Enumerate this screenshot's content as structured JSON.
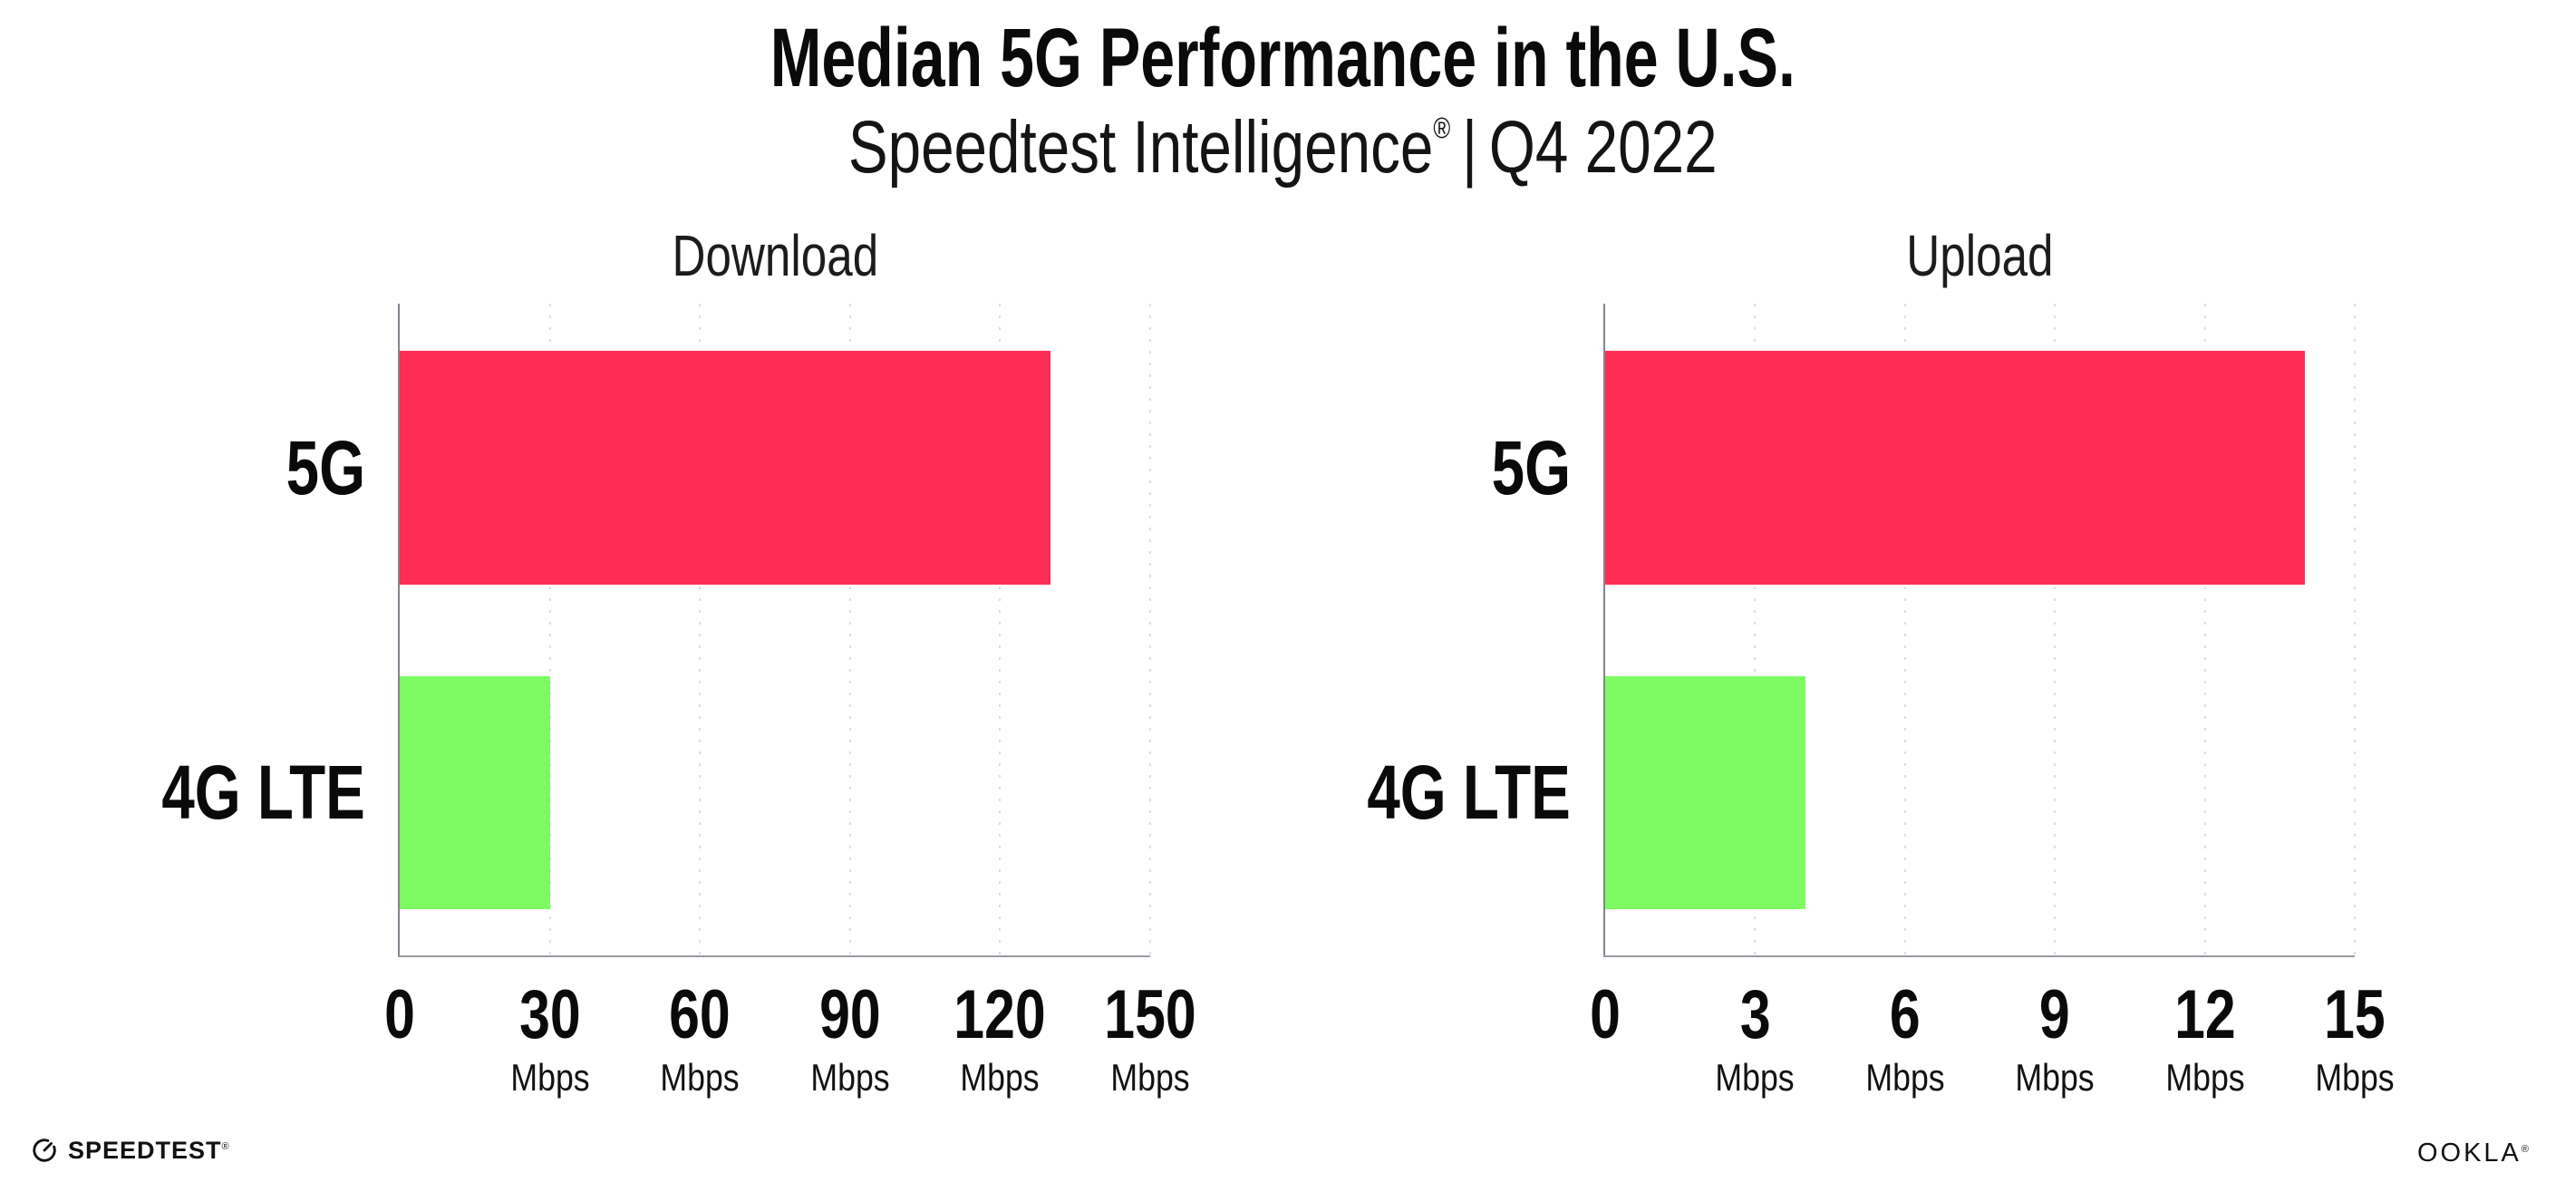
{
  "header": {
    "title": "Median 5G Performance in the U.S.",
    "subtitle_brand": "Speedtest Intelligence",
    "subtitle_reg": "®",
    "subtitle_divider": "|",
    "subtitle_period": "Q4 2022"
  },
  "chart_data": [
    {
      "type": "bar",
      "orientation": "horizontal",
      "title": "Download",
      "categories": [
        "5G",
        "4G LTE"
      ],
      "values": [
        130,
        30
      ],
      "unit": "Mbps",
      "xlim": [
        0,
        150
      ],
      "xticks": [
        0,
        30,
        60,
        90,
        120,
        150
      ],
      "tick_unit_label": "Mbps",
      "bar_colors": [
        "#FF2D55",
        "#7CFC62"
      ],
      "grid": "dotted-vertical",
      "legend": "none"
    },
    {
      "type": "bar",
      "orientation": "horizontal",
      "title": "Upload",
      "categories": [
        "5G",
        "4G LTE"
      ],
      "values": [
        14,
        4
      ],
      "unit": "Mbps",
      "xlim": [
        0,
        15
      ],
      "xticks": [
        0,
        3,
        6,
        9,
        12,
        15
      ],
      "tick_unit_label": "Mbps",
      "bar_colors": [
        "#FF2D55",
        "#7CFC62"
      ],
      "grid": "dotted-vertical",
      "legend": "none"
    }
  ],
  "footer": {
    "speedtest_logo_text": "SPEEDTEST",
    "speedtest_mark": "®",
    "ookla_logo_text": "OOKLA",
    "ookla_mark": "®"
  },
  "colors": {
    "bar_5g": "#FF2D55",
    "bar_4g_lte": "#7CFC62",
    "axis": "#9a9aa2",
    "grid_dot": "#dcdce8",
    "text": "#0a0a0a",
    "background": "#ffffff"
  }
}
